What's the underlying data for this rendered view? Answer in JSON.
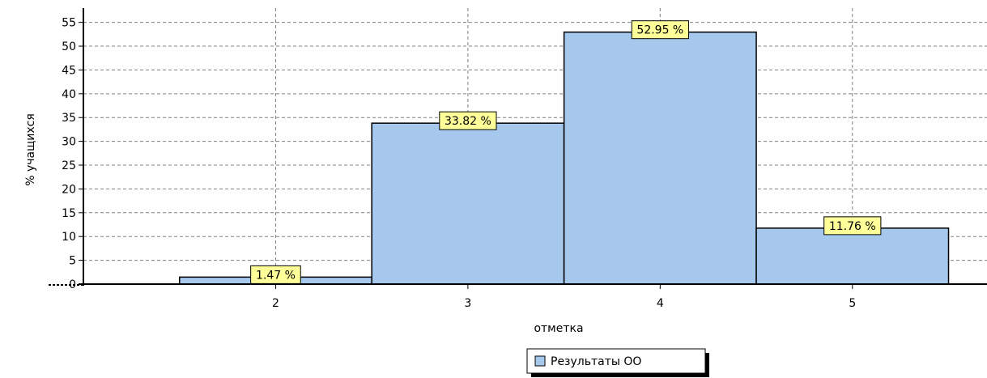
{
  "chart_data": {
    "type": "bar",
    "categories": [
      "2",
      "3",
      "4",
      "5"
    ],
    "series": [
      {
        "name": "Результаты ОО",
        "values": [
          1.47,
          33.82,
          52.95,
          11.76
        ],
        "color": "#a6c8ec"
      }
    ],
    "data_labels": [
      "1.47 %",
      "33.82 %",
      "52.95 %",
      "11.76 %"
    ],
    "xlabel": "отметка",
    "ylabel": "% учащихся",
    "ylim": [
      0,
      58
    ],
    "yticks": [
      0,
      5,
      10,
      15,
      20,
      25,
      30,
      35,
      40,
      45,
      50,
      55
    ],
    "xlim": [
      1,
      5.7
    ],
    "grid": true,
    "grid_style": "dashed",
    "legend_position": "bottom-center",
    "label_box_color": "#ffff99"
  }
}
